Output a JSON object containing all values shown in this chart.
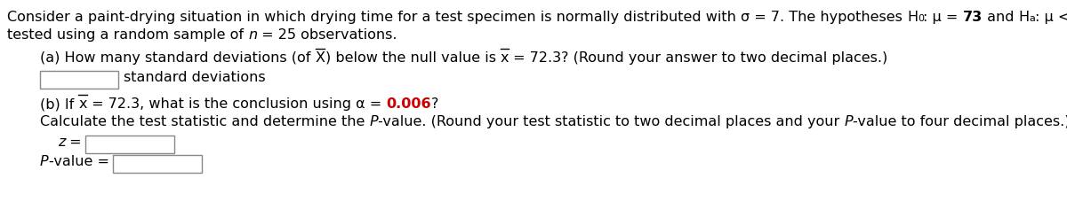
{
  "bg_color": "#ffffff",
  "text_color": "#000000",
  "red_color": "#cc0000",
  "fs_main": 11.5,
  "fs_sub": 8
}
